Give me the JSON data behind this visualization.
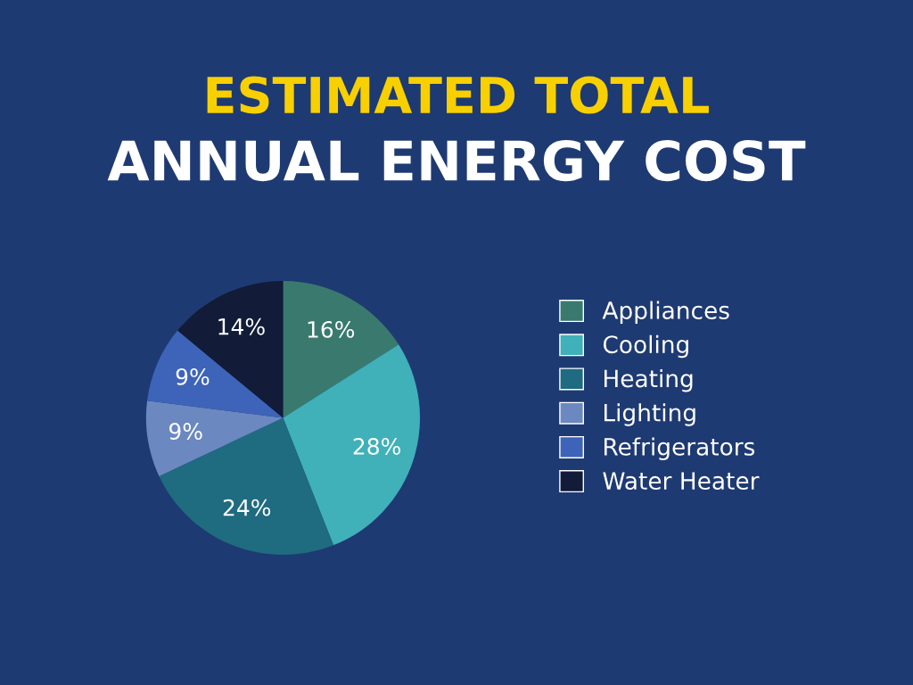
{
  "chart_data": {
    "type": "pie",
    "title": "ESTIMATED TOTAL",
    "subtitle": "ANNUAL ENERGY COST",
    "categories": [
      "Appliances",
      "Cooling",
      "Heating",
      "Lighting",
      "Refrigerators",
      "Water Heater"
    ],
    "values": [
      16,
      28,
      24,
      9,
      9,
      14
    ],
    "colors": [
      "#3a7a6e",
      "#40b0b9",
      "#1f6b80",
      "#6b88c0",
      "#3e64b9",
      "#121b38"
    ],
    "value_labels": [
      "16%",
      "28%",
      "24%",
      "9%",
      "9%",
      "14%"
    ],
    "legend": "right"
  }
}
